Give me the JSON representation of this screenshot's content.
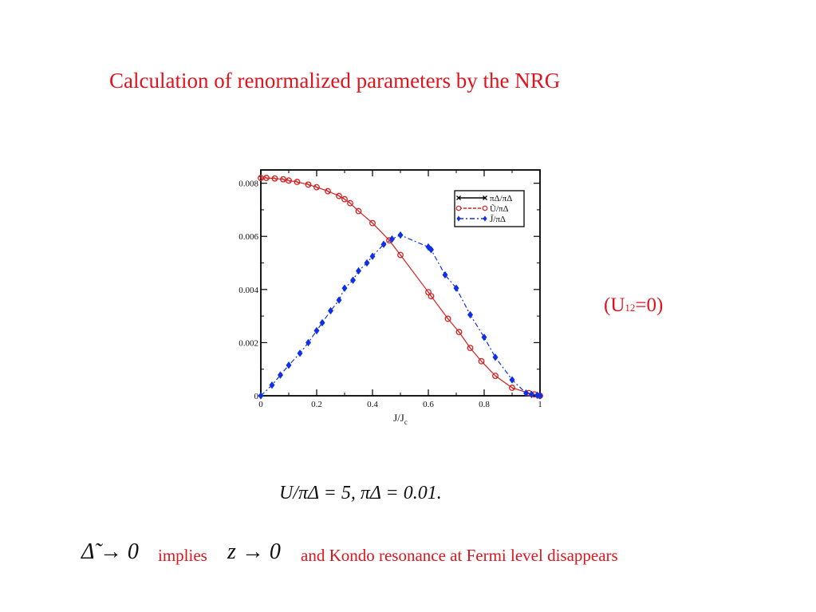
{
  "title": "Calculation of renormalized parameters by the NRG",
  "side_label": {
    "prefix": "(U",
    "sub": "12",
    "suffix": "=0)"
  },
  "params_line": {
    "lhs": "U/πΔ = 5,",
    "rhs": "πΔ = 0.01."
  },
  "bottom_line": {
    "math1": "Δ̃ → 0",
    "word1": "implies",
    "math2": "z → 0",
    "text2": "and Kondo resonance at Fermi level disappears"
  },
  "colors": {
    "title": "#e0141e",
    "series_black": "#000000",
    "series_red": "#d42020",
    "series_blue": "#1030e8"
  },
  "chart_data": {
    "type": "line",
    "xlabel": "J/J_c",
    "ylabel": "",
    "xlim": [
      0,
      1
    ],
    "ylim": [
      0,
      0.0085
    ],
    "x_ticks": [
      "0",
      "0.2",
      "0.4",
      "0.6",
      "0.8",
      "1"
    ],
    "y_ticks": [
      "0",
      "0.002",
      "0.004",
      "0.006",
      "0.008"
    ],
    "legend_position": "top-right",
    "series": [
      {
        "name": "πΔ/πΔ",
        "style": "solid-cross",
        "x": [],
        "y": []
      },
      {
        "name": "Ũ/πΔ",
        "style": "dashed-circle",
        "x": [
          0,
          0.02,
          0.05,
          0.08,
          0.1,
          0.13,
          0.17,
          0.2,
          0.24,
          0.28,
          0.3,
          0.32,
          0.35,
          0.4,
          0.46,
          0.5,
          0.6,
          0.61,
          0.67,
          0.71,
          0.75,
          0.79,
          0.84,
          0.9,
          0.96,
          0.98,
          1.0
        ],
        "y": [
          0.0082,
          0.0082,
          0.00818,
          0.00815,
          0.0081,
          0.00805,
          0.00795,
          0.00785,
          0.0077,
          0.00752,
          0.0074,
          0.00725,
          0.00695,
          0.0065,
          0.00585,
          0.0053,
          0.0039,
          0.00375,
          0.0029,
          0.0024,
          0.0018,
          0.0013,
          0.00075,
          0.0003,
          0.0001,
          5e-05,
          0.0
        ]
      },
      {
        "name": "J̃/πΔ",
        "style": "dashdot-diamond",
        "x": [
          0,
          0.04,
          0.07,
          0.1,
          0.14,
          0.17,
          0.2,
          0.22,
          0.25,
          0.28,
          0.3,
          0.33,
          0.35,
          0.38,
          0.4,
          0.44,
          0.47,
          0.5,
          0.6,
          0.61,
          0.66,
          0.7,
          0.75,
          0.8,
          0.84,
          0.9,
          0.95,
          0.97,
          0.99,
          1.0
        ],
        "y": [
          0.0,
          0.0004,
          0.00078,
          0.00115,
          0.0016,
          0.002,
          0.00245,
          0.00275,
          0.0032,
          0.0036,
          0.00405,
          0.00435,
          0.0047,
          0.005,
          0.00525,
          0.0057,
          0.0059,
          0.00605,
          0.0056,
          0.0055,
          0.00455,
          0.00405,
          0.00305,
          0.0022,
          0.00145,
          0.0006,
          0.0001,
          5e-05,
          2e-05,
          0.0
        ]
      }
    ]
  }
}
